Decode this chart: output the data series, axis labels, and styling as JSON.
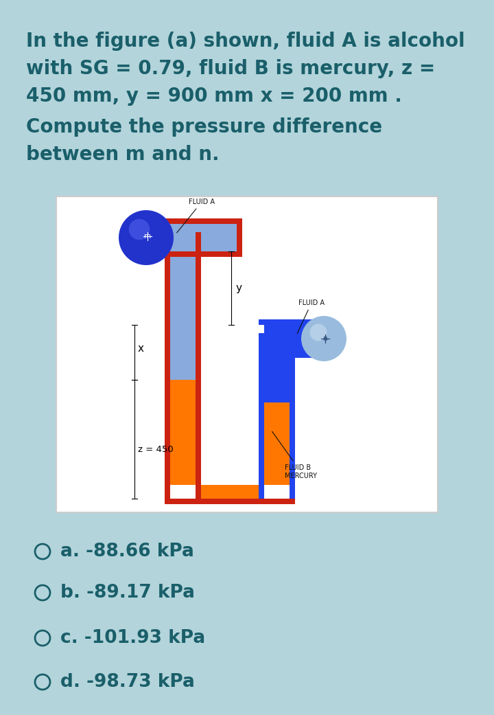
{
  "bg_color": "#b3d4db",
  "title_lines": [
    "In the figure (a) shown, fluid A is alcohol",
    "with SG = 0.79, fluid B is mercury, z =",
    "450 mm, y = 900 mm x = 200 mm .",
    "Compute the pressure difference",
    "between m and n."
  ],
  "title_color": "#1a5f6a",
  "title_fontsize": 20,
  "diagram_bg": "white",
  "choices": [
    "a. -88.66 kPa",
    "b. -89.17 kPa",
    "c. -101.93 kPa",
    "d. -98.73 kPa"
  ],
  "choice_color": "#1a5f6a",
  "choice_fontsize": 19,
  "red_color": "#cc2211",
  "blue_dark": "#2244ee",
  "blue_light": "#88aadd",
  "blue_lighter": "#aaccee",
  "orange_color": "#ff7700",
  "label_fontsize": 7,
  "annot_color": "#111111"
}
